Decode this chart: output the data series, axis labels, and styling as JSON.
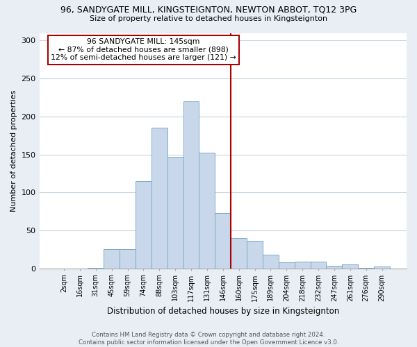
{
  "title": "96, SANDYGATE MILL, KINGSTEIGNTON, NEWTON ABBOT, TQ12 3PG",
  "subtitle": "Size of property relative to detached houses in Kingsteignton",
  "xlabel": "Distribution of detached houses by size in Kingsteignton",
  "ylabel": "Number of detached properties",
  "bar_labels": [
    "2sqm",
    "16sqm",
    "31sqm",
    "45sqm",
    "59sqm",
    "74sqm",
    "88sqm",
    "103sqm",
    "117sqm",
    "131sqm",
    "146sqm",
    "160sqm",
    "175sqm",
    "189sqm",
    "204sqm",
    "218sqm",
    "232sqm",
    "247sqm",
    "261sqm",
    "276sqm",
    "290sqm"
  ],
  "bar_heights": [
    0,
    0,
    1,
    25,
    25,
    115,
    185,
    147,
    220,
    152,
    73,
    40,
    36,
    18,
    8,
    9,
    9,
    3,
    5,
    1,
    2
  ],
  "bar_color": "#c8d8ea",
  "bar_edge_color": "#7aaac8",
  "vline_x": 10.5,
  "vline_color": "#aa0000",
  "annotation_text": "96 SANDYGATE MILL: 145sqm\n← 87% of detached houses are smaller (898)\n12% of semi-detached houses are larger (121) →",
  "annotation_box_color": "#ffffff",
  "annotation_box_edge": "#aa0000",
  "ylim": [
    0,
    310
  ],
  "yticks": [
    0,
    50,
    100,
    150,
    200,
    250,
    300
  ],
  "footer": "Contains HM Land Registry data © Crown copyright and database right 2024.\nContains public sector information licensed under the Open Government Licence v3.0.",
  "bg_color": "#e8eef4",
  "plot_bg_color": "#ffffff",
  "grid_color": "#c8d4de"
}
